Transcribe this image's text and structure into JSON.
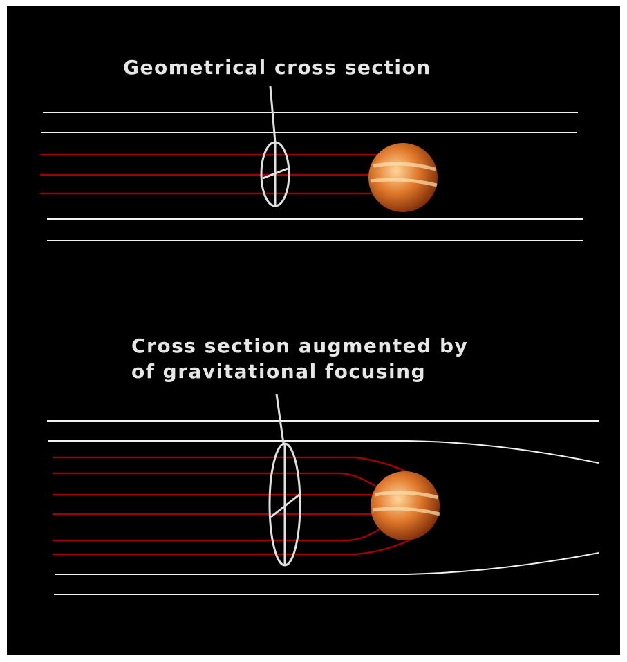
{
  "panels": [
    {
      "label_lines": [
        "Geometrical cross section"
      ]
    },
    {
      "label_lines": [
        "Cross section augmented by",
        "of gravitational focusing"
      ]
    }
  ]
}
